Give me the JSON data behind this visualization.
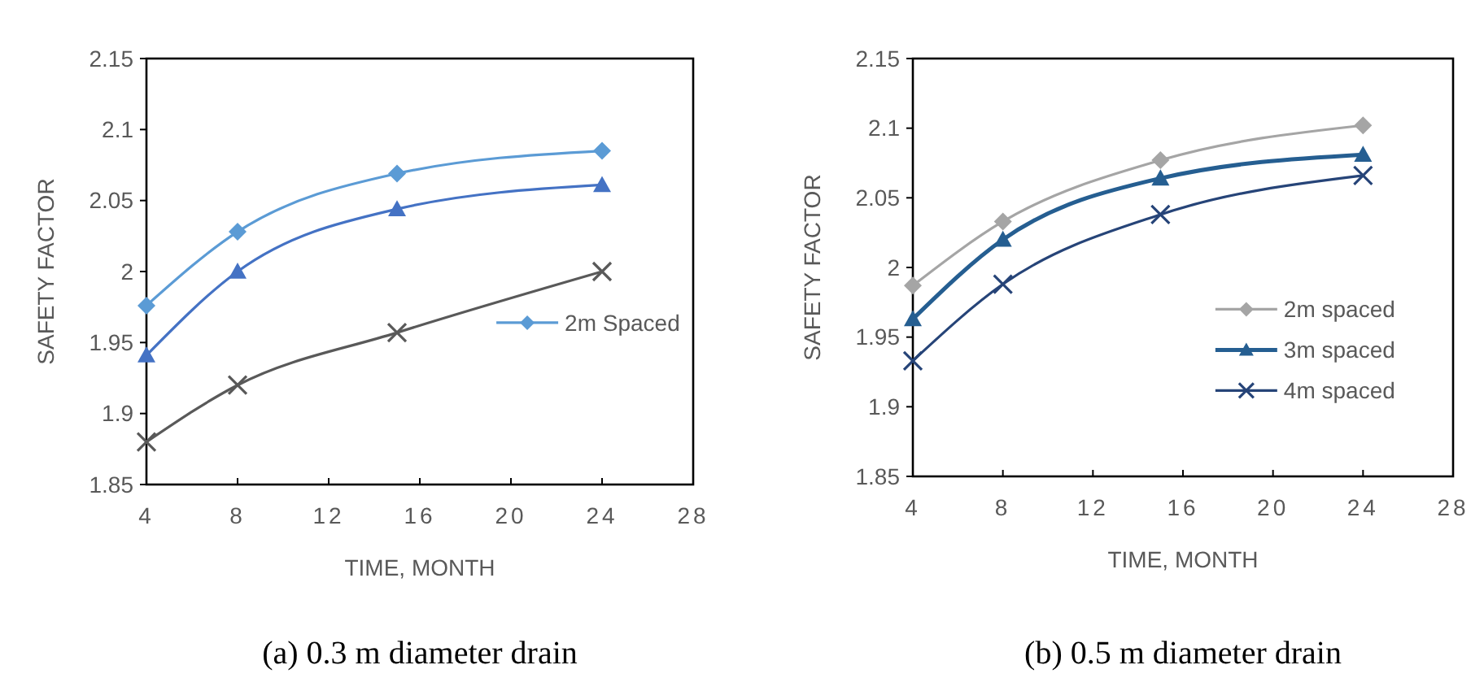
{
  "chart_data": [
    {
      "type": "line",
      "title": "(a) 0.3 m diameter drain",
      "xlabel": "TIME, MONTH",
      "ylabel": "SAFETY FACTOR",
      "x": [
        4,
        8,
        15,
        24
      ],
      "xlim": [
        4,
        28
      ],
      "xticks": [
        4,
        8,
        12,
        16,
        20,
        24,
        28
      ],
      "ylim": [
        1.85,
        2.15
      ],
      "yticks": [
        1.85,
        1.9,
        1.95,
        2,
        2.05,
        2.1,
        2.15
      ],
      "legend": "right",
      "series": [
        {
          "name": "2m Spaced",
          "color": "#5b9bd5",
          "marker": "diamond",
          "values": [
            1.976,
            2.028,
            2.069,
            2.085
          ]
        },
        {
          "color": "#4472c4",
          "marker": "triangle",
          "values": [
            1.941,
            2.0,
            2.044,
            2.061
          ]
        },
        {
          "color": "#595959",
          "marker": "cross",
          "values": [
            1.88,
            1.92,
            1.957,
            2.0
          ]
        }
      ]
    },
    {
      "type": "line",
      "title": "(b) 0.5 m diameter drain",
      "xlabel": "TIME, MONTH",
      "ylabel": "SAFETY FACTOR",
      "x": [
        4,
        8,
        15,
        24
      ],
      "xlim": [
        4,
        28
      ],
      "xticks": [
        4,
        8,
        12,
        16,
        20,
        24,
        28
      ],
      "ylim": [
        1.85,
        2.15
      ],
      "yticks": [
        1.85,
        1.9,
        1.95,
        2,
        2.05,
        2.1,
        2.15
      ],
      "legend": "bottom right",
      "series": [
        {
          "name": "2m spaced",
          "color": "#a5a5a5",
          "marker": "diamond",
          "values": [
            1.987,
            2.033,
            2.077,
            2.102
          ]
        },
        {
          "name": "3m spaced",
          "color": "#255e91",
          "marker": "triangle",
          "values": [
            1.963,
            2.02,
            2.064,
            2.081
          ]
        },
        {
          "name": "4m spaced",
          "color": "#264478",
          "marker": "cross",
          "values": [
            1.933,
            1.988,
            2.038,
            2.066
          ]
        }
      ]
    }
  ]
}
